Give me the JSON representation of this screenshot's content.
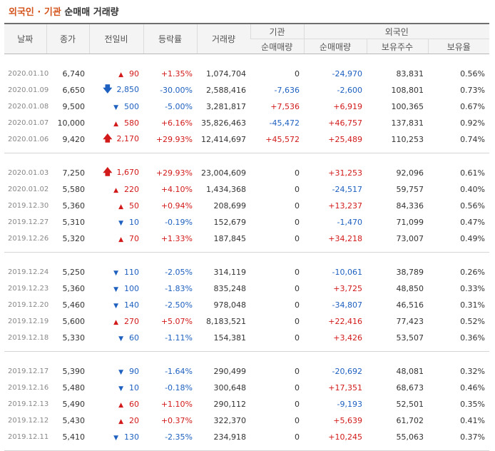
{
  "title": {
    "part1": "외국인 · 기관",
    "part2": "순매매 거래량"
  },
  "headers": {
    "date": "날짜",
    "close": "종가",
    "change": "전일비",
    "rate": "등락률",
    "volume": "거래량",
    "institution": "기관",
    "foreign": "외국인",
    "inst_net": "순매매량",
    "foreign_net": "순매매량",
    "holdings": "보유주수",
    "ratio": "보유율"
  },
  "groups": [
    [
      {
        "date": "2020.01.10",
        "close": "6,740",
        "dir": "up",
        "icon": "▲",
        "change": "90",
        "rate": "+1.35%",
        "volume": "1,074,704",
        "inst": "0",
        "inst_dir": "",
        "foreign": "-24,970",
        "foreign_dir": "down",
        "holdings": "83,831",
        "ratio": "0.56%"
      },
      {
        "date": "2020.01.09",
        "close": "6,650",
        "dir": "down",
        "icon": "🡇",
        "change": "2,850",
        "rate": "-30.00%",
        "volume": "2,588,416",
        "inst": "-7,636",
        "inst_dir": "down",
        "foreign": "-2,600",
        "foreign_dir": "down",
        "holdings": "108,801",
        "ratio": "0.73%"
      },
      {
        "date": "2020.01.08",
        "close": "9,500",
        "dir": "down",
        "icon": "▼",
        "change": "500",
        "rate": "-5.00%",
        "volume": "3,281,817",
        "inst": "+7,536",
        "inst_dir": "up",
        "foreign": "+6,919",
        "foreign_dir": "up",
        "holdings": "100,365",
        "ratio": "0.67%"
      },
      {
        "date": "2020.01.07",
        "close": "10,000",
        "dir": "up",
        "icon": "▲",
        "change": "580",
        "rate": "+6.16%",
        "volume": "35,826,463",
        "inst": "-45,472",
        "inst_dir": "down",
        "foreign": "+46,757",
        "foreign_dir": "up",
        "holdings": "137,831",
        "ratio": "0.92%"
      },
      {
        "date": "2020.01.06",
        "close": "9,420",
        "dir": "up",
        "icon": "🡅",
        "change": "2,170",
        "rate": "+29.93%",
        "volume": "12,414,697",
        "inst": "+45,572",
        "inst_dir": "up",
        "foreign": "+25,489",
        "foreign_dir": "up",
        "holdings": "110,253",
        "ratio": "0.74%"
      }
    ],
    [
      {
        "date": "2020.01.03",
        "close": "7,250",
        "dir": "up",
        "icon": "🡅",
        "change": "1,670",
        "rate": "+29.93%",
        "volume": "23,004,609",
        "inst": "0",
        "inst_dir": "",
        "foreign": "+31,253",
        "foreign_dir": "up",
        "holdings": "92,096",
        "ratio": "0.61%"
      },
      {
        "date": "2020.01.02",
        "close": "5,580",
        "dir": "up",
        "icon": "▲",
        "change": "220",
        "rate": "+4.10%",
        "volume": "1,434,368",
        "inst": "0",
        "inst_dir": "",
        "foreign": "-24,517",
        "foreign_dir": "down",
        "holdings": "59,757",
        "ratio": "0.40%"
      },
      {
        "date": "2019.12.30",
        "close": "5,360",
        "dir": "up",
        "icon": "▲",
        "change": "50",
        "rate": "+0.94%",
        "volume": "208,699",
        "inst": "0",
        "inst_dir": "",
        "foreign": "+13,237",
        "foreign_dir": "up",
        "holdings": "84,336",
        "ratio": "0.56%"
      },
      {
        "date": "2019.12.27",
        "close": "5,310",
        "dir": "down",
        "icon": "▼",
        "change": "10",
        "rate": "-0.19%",
        "volume": "152,679",
        "inst": "0",
        "inst_dir": "",
        "foreign": "-1,470",
        "foreign_dir": "down",
        "holdings": "71,099",
        "ratio": "0.47%"
      },
      {
        "date": "2019.12.26",
        "close": "5,320",
        "dir": "up",
        "icon": "▲",
        "change": "70",
        "rate": "+1.33%",
        "volume": "187,845",
        "inst": "0",
        "inst_dir": "",
        "foreign": "+34,218",
        "foreign_dir": "up",
        "holdings": "73,007",
        "ratio": "0.49%"
      }
    ],
    [
      {
        "date": "2019.12.24",
        "close": "5,250",
        "dir": "down",
        "icon": "▼",
        "change": "110",
        "rate": "-2.05%",
        "volume": "314,119",
        "inst": "0",
        "inst_dir": "",
        "foreign": "-10,061",
        "foreign_dir": "down",
        "holdings": "38,789",
        "ratio": "0.26%"
      },
      {
        "date": "2019.12.23",
        "close": "5,360",
        "dir": "down",
        "icon": "▼",
        "change": "100",
        "rate": "-1.83%",
        "volume": "835,248",
        "inst": "0",
        "inst_dir": "",
        "foreign": "+3,725",
        "foreign_dir": "up",
        "holdings": "48,850",
        "ratio": "0.33%"
      },
      {
        "date": "2019.12.20",
        "close": "5,460",
        "dir": "down",
        "icon": "▼",
        "change": "140",
        "rate": "-2.50%",
        "volume": "978,048",
        "inst": "0",
        "inst_dir": "",
        "foreign": "-34,807",
        "foreign_dir": "down",
        "holdings": "46,516",
        "ratio": "0.31%"
      },
      {
        "date": "2019.12.19",
        "close": "5,600",
        "dir": "up",
        "icon": "▲",
        "change": "270",
        "rate": "+5.07%",
        "volume": "8,183,521",
        "inst": "0",
        "inst_dir": "",
        "foreign": "+22,416",
        "foreign_dir": "up",
        "holdings": "77,423",
        "ratio": "0.52%"
      },
      {
        "date": "2019.12.18",
        "close": "5,330",
        "dir": "down",
        "icon": "▼",
        "change": "60",
        "rate": "-1.11%",
        "volume": "154,381",
        "inst": "0",
        "inst_dir": "",
        "foreign": "+3,426",
        "foreign_dir": "up",
        "holdings": "53,507",
        "ratio": "0.36%"
      }
    ],
    [
      {
        "date": "2019.12.17",
        "close": "5,390",
        "dir": "down",
        "icon": "▼",
        "change": "90",
        "rate": "-1.64%",
        "volume": "290,499",
        "inst": "0",
        "inst_dir": "",
        "foreign": "-20,692",
        "foreign_dir": "down",
        "holdings": "48,081",
        "ratio": "0.32%"
      },
      {
        "date": "2019.12.16",
        "close": "5,480",
        "dir": "down",
        "icon": "▼",
        "change": "10",
        "rate": "-0.18%",
        "volume": "300,648",
        "inst": "0",
        "inst_dir": "",
        "foreign": "+17,351",
        "foreign_dir": "up",
        "holdings": "68,673",
        "ratio": "0.46%"
      },
      {
        "date": "2019.12.13",
        "close": "5,490",
        "dir": "up",
        "icon": "▲",
        "change": "60",
        "rate": "+1.10%",
        "volume": "290,112",
        "inst": "0",
        "inst_dir": "",
        "foreign": "-9,193",
        "foreign_dir": "down",
        "holdings": "52,501",
        "ratio": "0.35%"
      },
      {
        "date": "2019.12.12",
        "close": "5,430",
        "dir": "up",
        "icon": "▲",
        "change": "20",
        "rate": "+0.37%",
        "volume": "322,370",
        "inst": "0",
        "inst_dir": "",
        "foreign": "+5,639",
        "foreign_dir": "up",
        "holdings": "61,702",
        "ratio": "0.41%"
      },
      {
        "date": "2019.12.11",
        "close": "5,410",
        "dir": "down",
        "icon": "▼",
        "change": "130",
        "rate": "-2.35%",
        "volume": "234,918",
        "inst": "0",
        "inst_dir": "",
        "foreign": "+10,245",
        "foreign_dir": "up",
        "holdings": "55,063",
        "ratio": "0.37%"
      }
    ]
  ]
}
